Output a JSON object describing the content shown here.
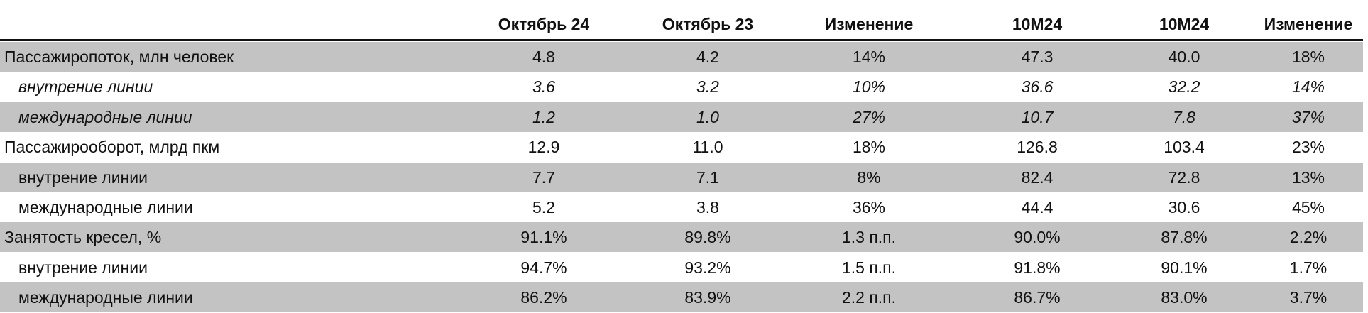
{
  "table": {
    "header": [
      "Октябрь 24",
      "Октябрь 23",
      "Изменение",
      "10M24",
      "10M24",
      "Изменение"
    ],
    "rows": [
      [
        "Пассажиропоток, млн человек",
        "4.8",
        "4.2",
        "14%",
        "47.3",
        "40.0",
        "18%"
      ],
      [
        "внутрение линии",
        "3.6",
        "3.2",
        "10%",
        "36.6",
        "32.2",
        "14%"
      ],
      [
        "международные линии",
        "1.2",
        "1.0",
        "27%",
        "10.7",
        "7.8",
        "37%"
      ],
      [
        "Пассажирооборот, млрд пкм",
        "12.9",
        "11.0",
        "18%",
        "126.8",
        "103.4",
        "23%"
      ],
      [
        "внутрение линии",
        "7.7",
        "7.1",
        "8%",
        "82.4",
        "72.8",
        "13%"
      ],
      [
        "международные линии",
        "5.2",
        "3.8",
        "36%",
        "44.4",
        "30.6",
        "45%"
      ],
      [
        "Занятость кресел, %",
        "91.1%",
        "89.8%",
        "1.3 п.п.",
        "90.0%",
        "87.8%",
        "2.2%"
      ],
      [
        "внутрение линии",
        "94.7%",
        "93.2%",
        "1.5 п.п.",
        "91.8%",
        "90.1%",
        "1.7%"
      ],
      [
        "международные линии",
        "86.2%",
        "83.9%",
        "2.2 п.п.",
        "86.7%",
        "83.0%",
        "3.7%"
      ]
    ]
  }
}
